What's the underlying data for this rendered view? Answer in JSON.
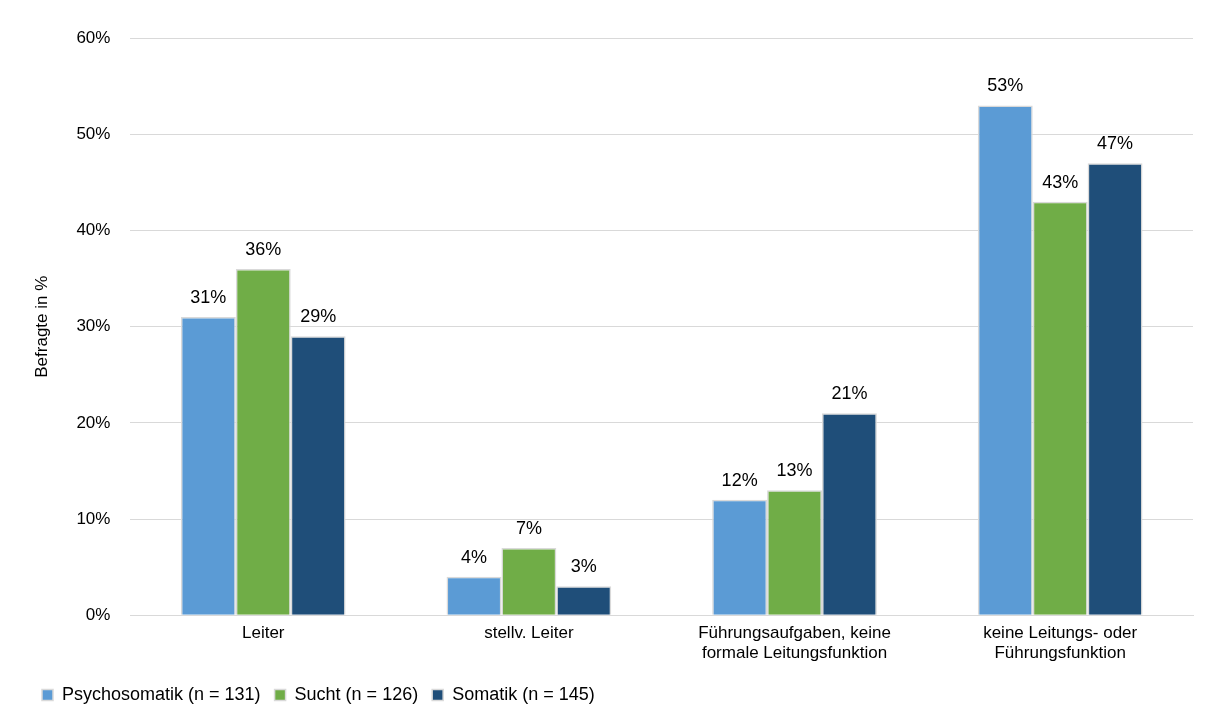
{
  "chart_data": {
    "type": "bar",
    "ylabel": "Befragte in %",
    "categories": [
      "Leiter",
      "stellv. Leiter",
      "Führungsaufgaben, keine formale Leitungsfunktion",
      "keine Leitungs- oder Führungsfunktion"
    ],
    "series": [
      {
        "name": "Psychosomatik (n = 131)",
        "color": "#5b9bd5",
        "values": [
          31,
          4,
          12,
          53
        ],
        "value_labels": [
          "31%",
          "4%",
          "12%",
          "53%"
        ]
      },
      {
        "name": "Sucht (n = 126)",
        "color": "#70ad47",
        "values": [
          36,
          7,
          13,
          43
        ],
        "value_labels": [
          "36%",
          "7%",
          "13%",
          "43%"
        ]
      },
      {
        "name": "Somatik (n = 145)",
        "color": "#1f4e79",
        "values": [
          29,
          3,
          21,
          47
        ],
        "value_labels": [
          "29%",
          "3%",
          "21%",
          "47%"
        ]
      }
    ],
    "ylim": [
      0,
      60
    ],
    "yticks": [
      {
        "value": 0,
        "label": "0%"
      },
      {
        "value": 10,
        "label": "10%"
      },
      {
        "value": 20,
        "label": "20%"
      },
      {
        "value": 30,
        "label": "30%"
      },
      {
        "value": 40,
        "label": "40%"
      },
      {
        "value": 50,
        "label": "50%"
      },
      {
        "value": 60,
        "label": "60%"
      }
    ],
    "grid": "y",
    "legend": "bottom left"
  }
}
